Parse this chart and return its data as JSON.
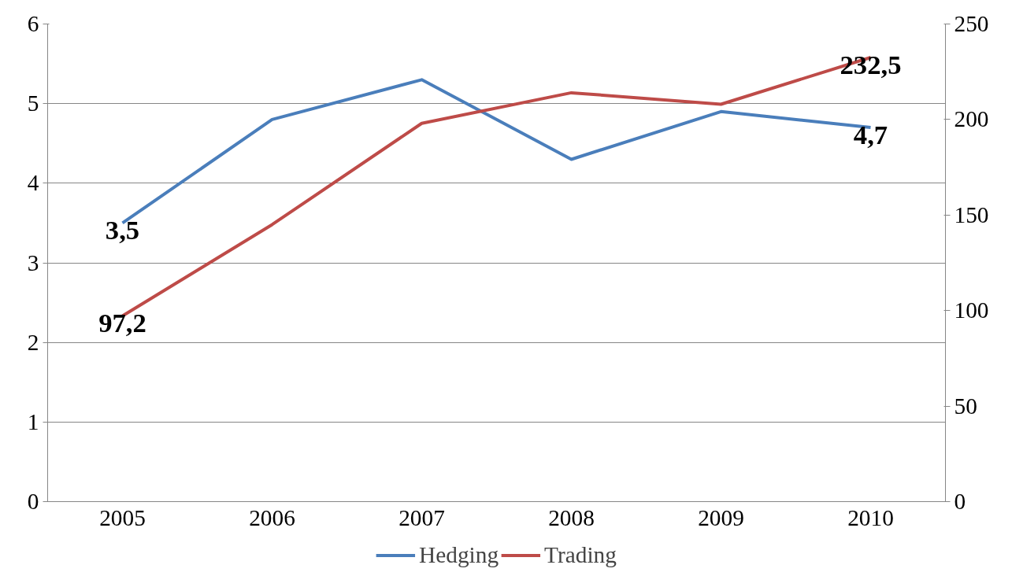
{
  "chart_data": {
    "type": "line",
    "categories": [
      "2005",
      "2006",
      "2007",
      "2008",
      "2009",
      "2010"
    ],
    "series": [
      {
        "name": "Hedging",
        "color": "#4a7ebb",
        "values": [
          3.5,
          4.8,
          5.3,
          4.3,
          4.9,
          4.7
        ],
        "value_labels": [
          "3,5",
          null,
          null,
          null,
          null,
          "4,7"
        ]
      },
      {
        "name": "Trading",
        "color": "#be4b48",
        "axis": "y2",
        "values": [
          97.2,
          145,
          198,
          214,
          208,
          232.5
        ],
        "value_labels": [
          "97,2",
          null,
          null,
          null,
          null,
          "232,5"
        ]
      }
    ],
    "ylim": [
      0,
      6
    ],
    "yticks": [
      0,
      1,
      2,
      3,
      4,
      5,
      6
    ],
    "y2lim": [
      0,
      250
    ],
    "y2ticks": [
      0,
      50,
      100,
      150,
      200,
      250
    ],
    "grid": "y",
    "legend": "bottom",
    "marker": "none",
    "line_style": "solid"
  }
}
